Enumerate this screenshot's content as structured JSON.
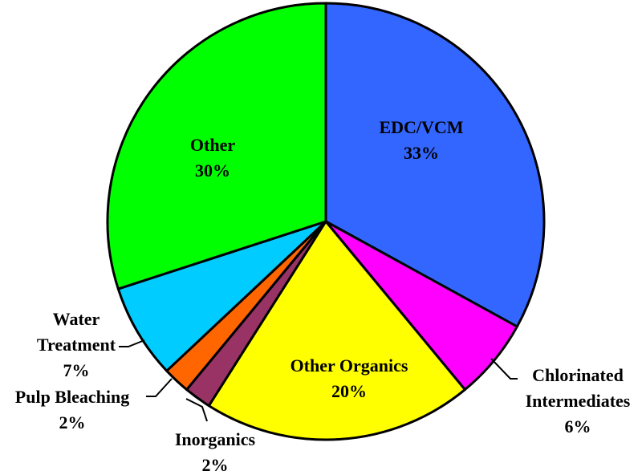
{
  "chart_data": {
    "type": "pie",
    "start": "top",
    "direction": "clockwise",
    "slices": [
      {
        "label": "EDC/VCM",
        "value": 33,
        "pct_label": "33%",
        "color": "#3366FF"
      },
      {
        "label": "Chlorinated Intermediates",
        "label_lines": [
          "Chlorinated",
          "Intermediates"
        ],
        "value": 6,
        "pct_label": "6%",
        "color": "#FF00FF"
      },
      {
        "label": "Other Organics",
        "value": 20,
        "pct_label": "20%",
        "color": "#FFFF00"
      },
      {
        "label": "Inorganics",
        "value": 2,
        "pct_label": "2%",
        "color": "#993366"
      },
      {
        "label": "Pulp Bleaching",
        "value": 2,
        "pct_label": "2%",
        "color": "#FF6600"
      },
      {
        "label": "Water Treatment",
        "label_lines": [
          "Water",
          "Treatment"
        ],
        "value": 7,
        "pct_label": "7%",
        "color": "#00CCFF"
      },
      {
        "label": "Other",
        "value": 30,
        "pct_label": "30%",
        "color": "#00FF00"
      }
    ]
  }
}
